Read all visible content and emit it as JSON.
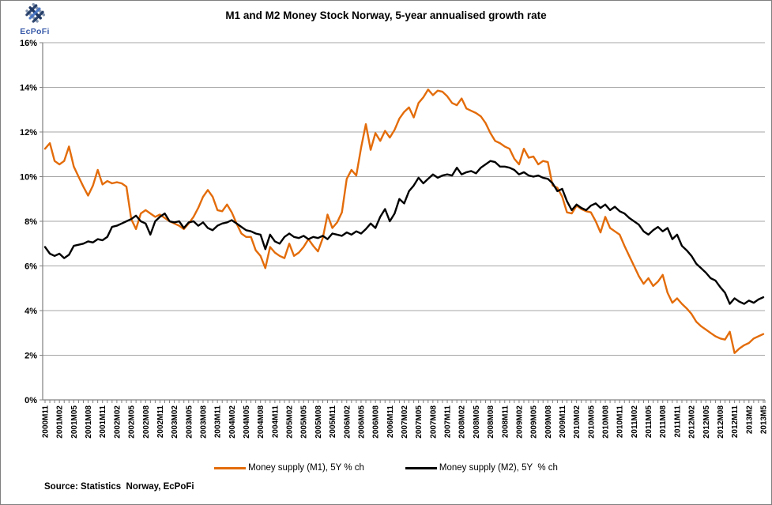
{
  "logo": {
    "text": "EcPoFi"
  },
  "title": "M1 and M2 Money Stock Norway, 5-year annualised growth rate",
  "source_note": "Source: Statistics  Norway, EcPoFi",
  "colors": {
    "m1_orange": "#E36C0A",
    "m2_black": "#000000",
    "gridline": "#A6A6A6",
    "axis": "#808080",
    "logo_navy": "#1F3864",
    "logo_steel": "#8496B0",
    "logo_text_blue": "#3A5BA9"
  },
  "chart_data": {
    "type": "line",
    "title": "M1 and M2 Money Stock Norway, 5-year annualised growth rate",
    "xlabel": "",
    "ylabel": "",
    "ylim": [
      0,
      16
    ],
    "ytick_step": 2,
    "ytick_labels": [
      "0%",
      "2%",
      "4%",
      "6%",
      "8%",
      "10%",
      "12%",
      "14%",
      "16%"
    ],
    "grid": "horizontal",
    "legend_position": "bottom",
    "n_points": 151,
    "months_per_tick": 3,
    "x_tick_labels": [
      "2000M11",
      "2001M02",
      "2001M05",
      "2001M08",
      "2001M11",
      "2002M02",
      "2002M05",
      "2002M08",
      "2002M11",
      "2003M02",
      "2003M05",
      "2003M08",
      "2003M11",
      "2004M02",
      "2004M05",
      "2004M08",
      "2004M11",
      "2005M02",
      "2005M05",
      "2005M08",
      "2005M11",
      "2006M02",
      "2006M05",
      "2006M08",
      "2006M11",
      "2007M02",
      "2007M05",
      "2007M08",
      "2007M11",
      "2008M02",
      "2008M05",
      "2008M08",
      "2008M11",
      "2009M02",
      "2009M05",
      "2009M08",
      "2009M11",
      "2010M02",
      "2010M05",
      "2010M08",
      "2010M11",
      "2011M02",
      "2011M05",
      "2011M08",
      "2011M11",
      "2012M02",
      "2012M05",
      "2012M08",
      "2012M11",
      "2013M2",
      "2013M5"
    ],
    "series": [
      {
        "name": "Money supply (M1), 5Y % ch",
        "color": "#E36C0A",
        "values": [
          11.25,
          11.5,
          10.7,
          10.55,
          10.7,
          11.35,
          10.45,
          10.0,
          9.55,
          9.15,
          9.6,
          10.3,
          9.65,
          9.8,
          9.7,
          9.75,
          9.7,
          9.55,
          8.1,
          7.65,
          8.35,
          8.5,
          8.35,
          8.2,
          8.3,
          8.15,
          8.0,
          7.9,
          7.8,
          7.65,
          7.9,
          8.2,
          8.6,
          9.1,
          9.4,
          9.1,
          8.5,
          8.45,
          8.75,
          8.4,
          7.9,
          7.45,
          7.3,
          7.3,
          6.7,
          6.45,
          5.9,
          6.85,
          6.6,
          6.45,
          6.35,
          7.0,
          6.45,
          6.6,
          6.85,
          7.2,
          6.9,
          6.65,
          7.25,
          8.3,
          7.7,
          7.95,
          8.4,
          9.9,
          10.3,
          10.05,
          11.3,
          12.35,
          11.2,
          11.95,
          11.6,
          12.05,
          11.75,
          12.1,
          12.6,
          12.9,
          13.1,
          12.65,
          13.3,
          13.55,
          13.9,
          13.65,
          13.85,
          13.8,
          13.6,
          13.3,
          13.2,
          13.5,
          13.05,
          12.95,
          12.85,
          12.7,
          12.4,
          11.95,
          11.6,
          11.5,
          11.35,
          11.25,
          10.8,
          10.55,
          11.25,
          10.85,
          10.9,
          10.55,
          10.7,
          10.65,
          9.6,
          9.5,
          9.1,
          8.4,
          8.35,
          8.7,
          8.55,
          8.45,
          8.4,
          8.0,
          7.5,
          8.2,
          7.7,
          7.55,
          7.4,
          6.9,
          6.45,
          6.0,
          5.55,
          5.2,
          5.45,
          5.1,
          5.3,
          5.6,
          4.8,
          4.35,
          4.55,
          4.3,
          4.1,
          3.85,
          3.5,
          3.3,
          3.15,
          3.0,
          2.85,
          2.75,
          2.7,
          3.05,
          2.1,
          2.3,
          2.45,
          2.55,
          2.75,
          2.85,
          2.95
        ]
      },
      {
        "name": "Money supply (M2), 5Y  % ch",
        "color": "#000000",
        "values": [
          6.85,
          6.55,
          6.45,
          6.55,
          6.35,
          6.5,
          6.9,
          6.95,
          7.0,
          7.1,
          7.05,
          7.2,
          7.15,
          7.3,
          7.75,
          7.8,
          7.9,
          8.0,
          8.1,
          8.25,
          8.0,
          7.9,
          7.4,
          8.0,
          8.2,
          8.35,
          8.0,
          7.95,
          8.0,
          7.7,
          7.95,
          8.0,
          7.8,
          7.95,
          7.7,
          7.6,
          7.8,
          7.9,
          7.95,
          8.05,
          7.9,
          7.75,
          7.6,
          7.55,
          7.45,
          7.4,
          6.75,
          7.4,
          7.1,
          7.0,
          7.3,
          7.45,
          7.3,
          7.25,
          7.35,
          7.2,
          7.3,
          7.25,
          7.35,
          7.2,
          7.45,
          7.4,
          7.35,
          7.5,
          7.4,
          7.55,
          7.45,
          7.65,
          7.9,
          7.7,
          8.2,
          8.55,
          8.0,
          8.35,
          9.0,
          8.8,
          9.35,
          9.6,
          9.95,
          9.7,
          9.9,
          10.1,
          9.95,
          10.05,
          10.1,
          10.05,
          10.4,
          10.1,
          10.2,
          10.25,
          10.15,
          10.4,
          10.55,
          10.7,
          10.65,
          10.45,
          10.45,
          10.4,
          10.3,
          10.1,
          10.2,
          10.05,
          10.0,
          10.05,
          9.95,
          9.9,
          9.7,
          9.35,
          9.45,
          8.9,
          8.5,
          8.75,
          8.6,
          8.5,
          8.7,
          8.8,
          8.6,
          8.75,
          8.5,
          8.65,
          8.45,
          8.35,
          8.15,
          8.0,
          7.85,
          7.55,
          7.4,
          7.6,
          7.75,
          7.55,
          7.7,
          7.2,
          7.4,
          6.9,
          6.7,
          6.45,
          6.1,
          5.9,
          5.7,
          5.45,
          5.35,
          5.05,
          4.8,
          4.3,
          4.55,
          4.4,
          4.3,
          4.45,
          4.35,
          4.5,
          4.6
        ]
      }
    ]
  }
}
